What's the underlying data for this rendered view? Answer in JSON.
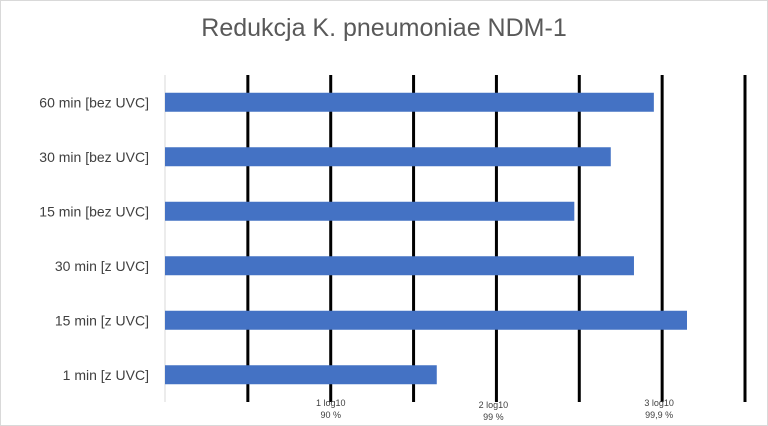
{
  "chart_data": {
    "type": "bar",
    "orientation": "horizontal",
    "title": "Redukcja K. pneumoniae NDM-1",
    "categories": [
      "60 min   [bez UVC]",
      "30 min   [bez UVC]",
      "15 min   [bez UVC]",
      "30 min   [z UVC]",
      "15 min   [z UVC]",
      "1 min  [z UVC]"
    ],
    "values": [
      2.95,
      2.69,
      2.47,
      2.83,
      3.15,
      1.64
    ],
    "xlim": [
      0,
      3.5
    ],
    "grid_major": [
      0.5,
      1.0,
      1.5,
      2.0,
      2.5,
      3.0,
      3.5
    ],
    "tick_labels": [
      {
        "value": 1,
        "line1": "1 log10",
        "line2": "90 %"
      },
      {
        "value": 2,
        "line1": "2 log10",
        "line2": "99 %"
      },
      {
        "value": 3,
        "line1": "3 log10",
        "line2": "99,9 %"
      }
    ],
    "bar_color": "#4472c4",
    "grid_color": "#000000",
    "legend": "none"
  }
}
